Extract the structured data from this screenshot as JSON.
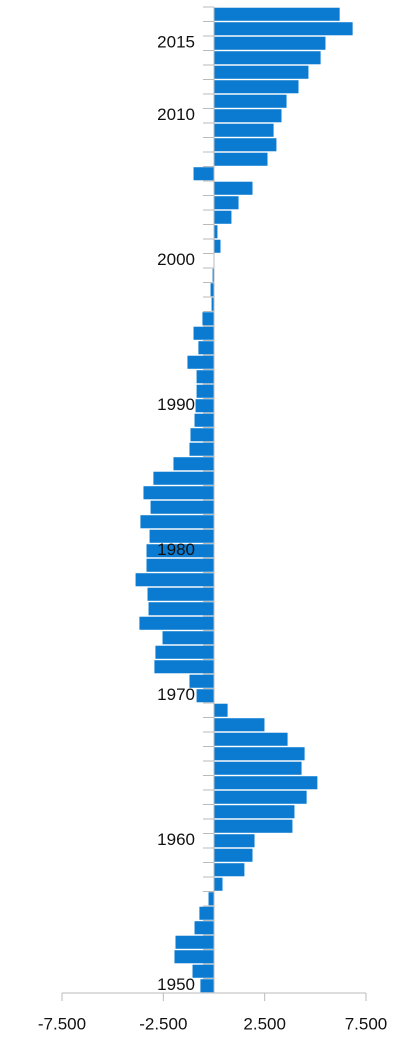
{
  "chart_data": {
    "type": "hbar",
    "categories": [
      "1950",
      null,
      null,
      null,
      null,
      null,
      null,
      null,
      null,
      null,
      "1960",
      null,
      null,
      null,
      null,
      null,
      null,
      null,
      null,
      null,
      "1970",
      null,
      null,
      null,
      null,
      null,
      null,
      null,
      null,
      null,
      "1980",
      null,
      null,
      null,
      null,
      null,
      null,
      null,
      null,
      null,
      "1990",
      null,
      null,
      null,
      null,
      null,
      null,
      null,
      null,
      null,
      "2000",
      null,
      null,
      null,
      null,
      null,
      null,
      null,
      null,
      null,
      "2010",
      null,
      null,
      null,
      null,
      "2015",
      null,
      null
    ],
    "values": [
      -0.67,
      -1.06,
      -1.95,
      -1.9,
      -0.96,
      -0.72,
      -0.27,
      0.42,
      1.5,
      1.9,
      2.0,
      3.87,
      3.97,
      4.57,
      5.1,
      4.32,
      4.47,
      3.63,
      2.49,
      0.67,
      -0.86,
      -1.21,
      -2.94,
      -2.89,
      -2.54,
      -3.68,
      -3.23,
      -3.28,
      -3.87,
      -3.33,
      -3.33,
      -3.18,
      -3.63,
      -3.13,
      -3.48,
      -2.99,
      -2.0,
      -1.21,
      -1.16,
      -0.96,
      -0.91,
      -0.86,
      -0.86,
      -1.31,
      -0.77,
      -1.01,
      -0.57,
      -0.12,
      -0.17,
      -0.07,
      0.02,
      0.32,
      0.17,
      0.86,
      1.21,
      1.9,
      -1.01,
      2.64,
      3.08,
      2.94,
      3.33,
      3.58,
      4.17,
      4.66,
      5.26,
      5.5,
      6.84,
      6.2
    ],
    "color": "#0a7bd1",
    "xlim": [
      -7.5,
      7.5
    ],
    "xticks": [
      {
        "value": -7.5,
        "label": "-7.500"
      },
      {
        "value": -2.5,
        "label": "-2.500"
      },
      {
        "value": 2.5,
        "label": "2.500"
      },
      {
        "value": 7.5,
        "label": "7.500"
      }
    ],
    "grid": false
  }
}
